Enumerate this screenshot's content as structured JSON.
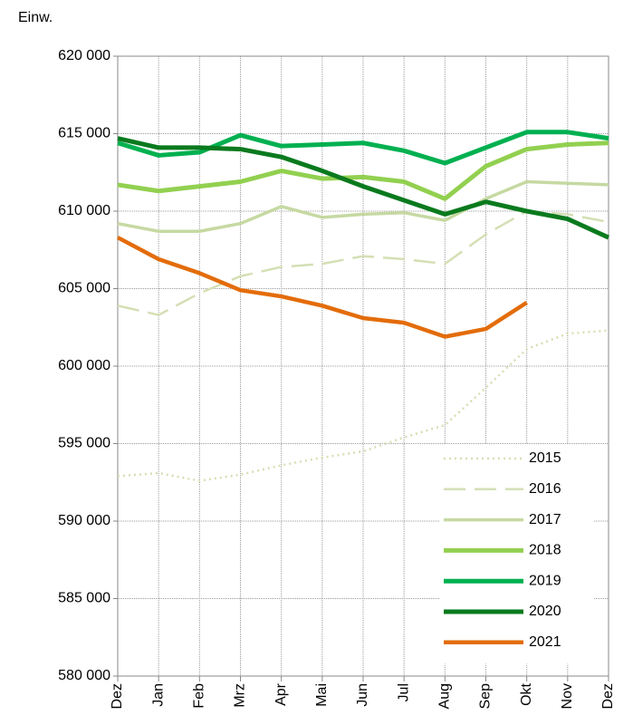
{
  "chart_data": {
    "type": "line",
    "y_axis_label": "Einw.",
    "categories": [
      "Dez",
      "Jan",
      "Feb",
      "Mrz",
      "Apr",
      "Mai",
      "Jun",
      "Jul",
      "Aug",
      "Sep",
      "Okt",
      "Nov",
      "Dez"
    ],
    "ylim": [
      580000,
      620000
    ],
    "yticks": [
      {
        "value": 580000,
        "label": "580 000"
      },
      {
        "value": 585000,
        "label": "585 000"
      },
      {
        "value": 590000,
        "label": "590 000"
      },
      {
        "value": 595000,
        "label": "595 000"
      },
      {
        "value": 600000,
        "label": "600 000"
      },
      {
        "value": 605000,
        "label": "605 000"
      },
      {
        "value": 610000,
        "label": "610 000"
      },
      {
        "value": 615000,
        "label": "615 000"
      },
      {
        "value": 620000,
        "label": "620 000"
      }
    ],
    "grid": true,
    "legend": "lower right",
    "series": [
      {
        "name": "2015",
        "color": "#d4dfb4",
        "dash": "dotted",
        "values": [
          592900,
          593100,
          592600,
          593000,
          593600,
          594100,
          594500,
          595400,
          596200,
          598600,
          601100,
          602100,
          602300
        ]
      },
      {
        "name": "2016",
        "color": "#d4dfb4",
        "dash": "dashed",
        "values": [
          603900,
          603300,
          604700,
          605800,
          606400,
          606600,
          607100,
          606900,
          606600,
          608500,
          610000,
          609800,
          609300
        ]
      },
      {
        "name": "2017",
        "color": "#c6d9a2",
        "values": [
          609200,
          608700,
          608700,
          609200,
          610300,
          609600,
          609800,
          609900,
          609400,
          610800,
          611900,
          611800,
          611700
        ]
      },
      {
        "name": "2018",
        "color": "#92d050",
        "values": [
          611700,
          611300,
          611600,
          611900,
          612600,
          612100,
          612200,
          611900,
          610800,
          612900,
          614000,
          614300,
          614400
        ]
      },
      {
        "name": "2019",
        "color": "#00b050",
        "values": [
          614400,
          613600,
          613800,
          614900,
          614200,
          614300,
          614400,
          613900,
          613100,
          614100,
          615100,
          615100,
          614700
        ]
      },
      {
        "name": "2020",
        "color": "#0a7a1e",
        "values": [
          614700,
          614100,
          614100,
          614000,
          613500,
          612600,
          611600,
          610700,
          609800,
          610600,
          610000,
          609500,
          608300
        ]
      },
      {
        "name": "2021",
        "color": "#e36c0a",
        "values": [
          608300,
          606900,
          606000,
          604900,
          604500,
          603900,
          603100,
          602800,
          601900,
          602400,
          604100,
          null,
          null
        ]
      }
    ]
  }
}
